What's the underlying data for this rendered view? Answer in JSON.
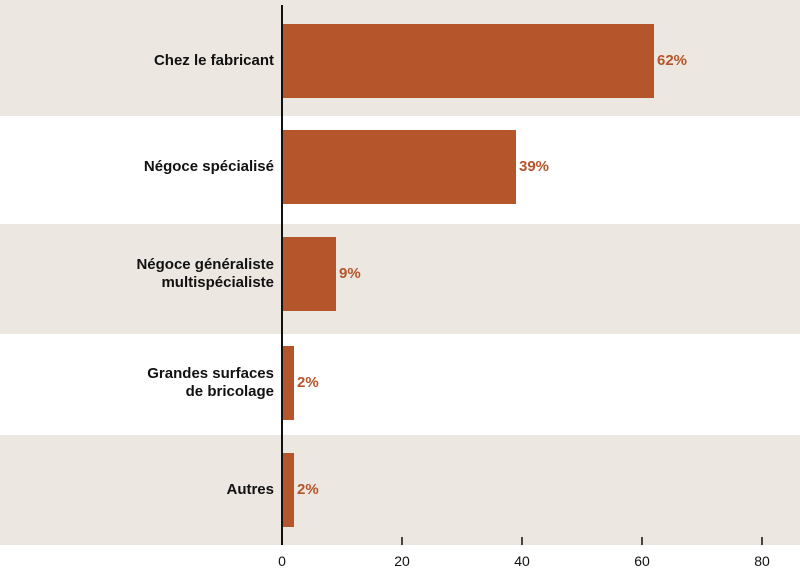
{
  "chart_data": {
    "type": "bar",
    "orientation": "horizontal",
    "categories": [
      [
        "Chez le fabricant"
      ],
      [
        "Négoce spécialisé"
      ],
      [
        "Négoce généraliste",
        "multispécialiste"
      ],
      [
        "Grandes surfaces",
        "de bricolage"
      ],
      [
        "Autres"
      ]
    ],
    "values": [
      62,
      39,
      9,
      2,
      2
    ],
    "value_labels": [
      "62%",
      "39%",
      "9%",
      "2%",
      "2%"
    ],
    "xlim": [
      0,
      80
    ],
    "xticks": [
      0,
      20,
      40,
      60,
      80
    ],
    "xtick_labels": [
      "0",
      "20",
      "40",
      "60",
      "80"
    ],
    "row_bands": "alternating",
    "grid": false,
    "legend": "none"
  },
  "colors": {
    "bar": "#B5552B",
    "value_label": "#B5552B",
    "band_shaded": "#ECE7E0",
    "band_plain": "#FFFFFF",
    "axis": "#111111"
  }
}
